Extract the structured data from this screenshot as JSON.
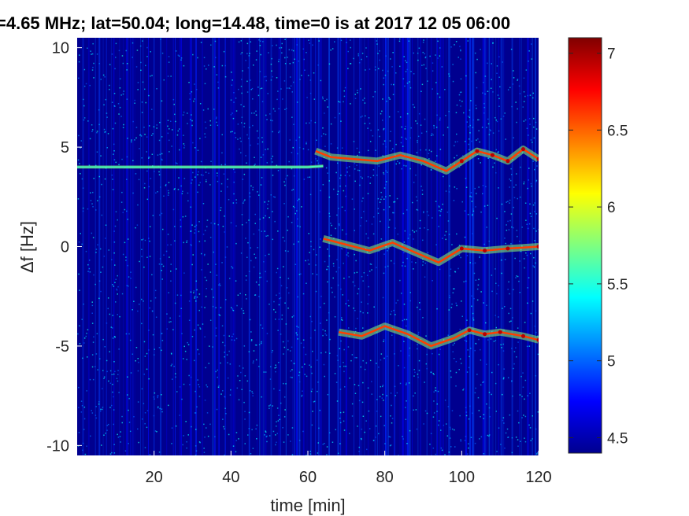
{
  "chart_data": {
    "type": "heatmap",
    "title": "=4.65 MHz;  lat=50.04; long=14.48, time=0 is at 2017 12 05 06:00",
    "xlabel": "time [min]",
    "ylabel": "Δf [Hz]",
    "xlim": [
      0,
      120
    ],
    "ylim": [
      -10.5,
      10.5
    ],
    "xticks": [
      20,
      40,
      60,
      80,
      100,
      120
    ],
    "xtick_labels": [
      "20",
      "40",
      "60",
      "80",
      "100",
      "120"
    ],
    "yticks": [
      10,
      5,
      0,
      -5,
      -10
    ],
    "ytick_labels": [
      "10",
      "5",
      "0",
      "-5",
      "-10"
    ],
    "colorbar": {
      "colormap": "jet",
      "range": [
        4.4,
        7.1
      ],
      "ticks": [
        7,
        6.5,
        6,
        5.5,
        5,
        4.5
      ],
      "tick_labels": [
        "7",
        "6.5",
        "6",
        "5.5",
        "5",
        "4.5"
      ]
    },
    "background_level": 4.5,
    "features": [
      {
        "name": "carrier",
        "points": [
          [
            0,
            4.0
          ],
          [
            20,
            4.0
          ],
          [
            40,
            4.0
          ],
          [
            60,
            4.0
          ],
          [
            64,
            4.05
          ]
        ]
      },
      {
        "name": "upper",
        "points": [
          [
            62,
            4.8
          ],
          [
            66,
            4.5
          ],
          [
            72,
            4.4
          ],
          [
            78,
            4.3
          ],
          [
            84,
            4.6
          ],
          [
            90,
            4.3
          ],
          [
            96,
            3.8
          ],
          [
            100,
            4.3
          ],
          [
            104,
            4.8
          ],
          [
            108,
            4.6
          ],
          [
            112,
            4.3
          ],
          [
            116,
            4.9
          ],
          [
            120,
            4.4
          ]
        ]
      },
      {
        "name": "middle",
        "points": [
          [
            64,
            0.4
          ],
          [
            70,
            0.1
          ],
          [
            76,
            -0.2
          ],
          [
            82,
            0.2
          ],
          [
            88,
            -0.3
          ],
          [
            94,
            -0.8
          ],
          [
            100,
            -0.1
          ],
          [
            106,
            -0.2
          ],
          [
            112,
            -0.1
          ],
          [
            120,
            0.0
          ]
        ]
      },
      {
        "name": "lower",
        "points": [
          [
            68,
            -4.3
          ],
          [
            74,
            -4.5
          ],
          [
            80,
            -4.0
          ],
          [
            86,
            -4.4
          ],
          [
            92,
            -5.0
          ],
          [
            98,
            -4.6
          ],
          [
            102,
            -4.2
          ],
          [
            106,
            -4.4
          ],
          [
            110,
            -4.3
          ],
          [
            116,
            -4.5
          ],
          [
            120,
            -4.7
          ]
        ]
      }
    ]
  }
}
